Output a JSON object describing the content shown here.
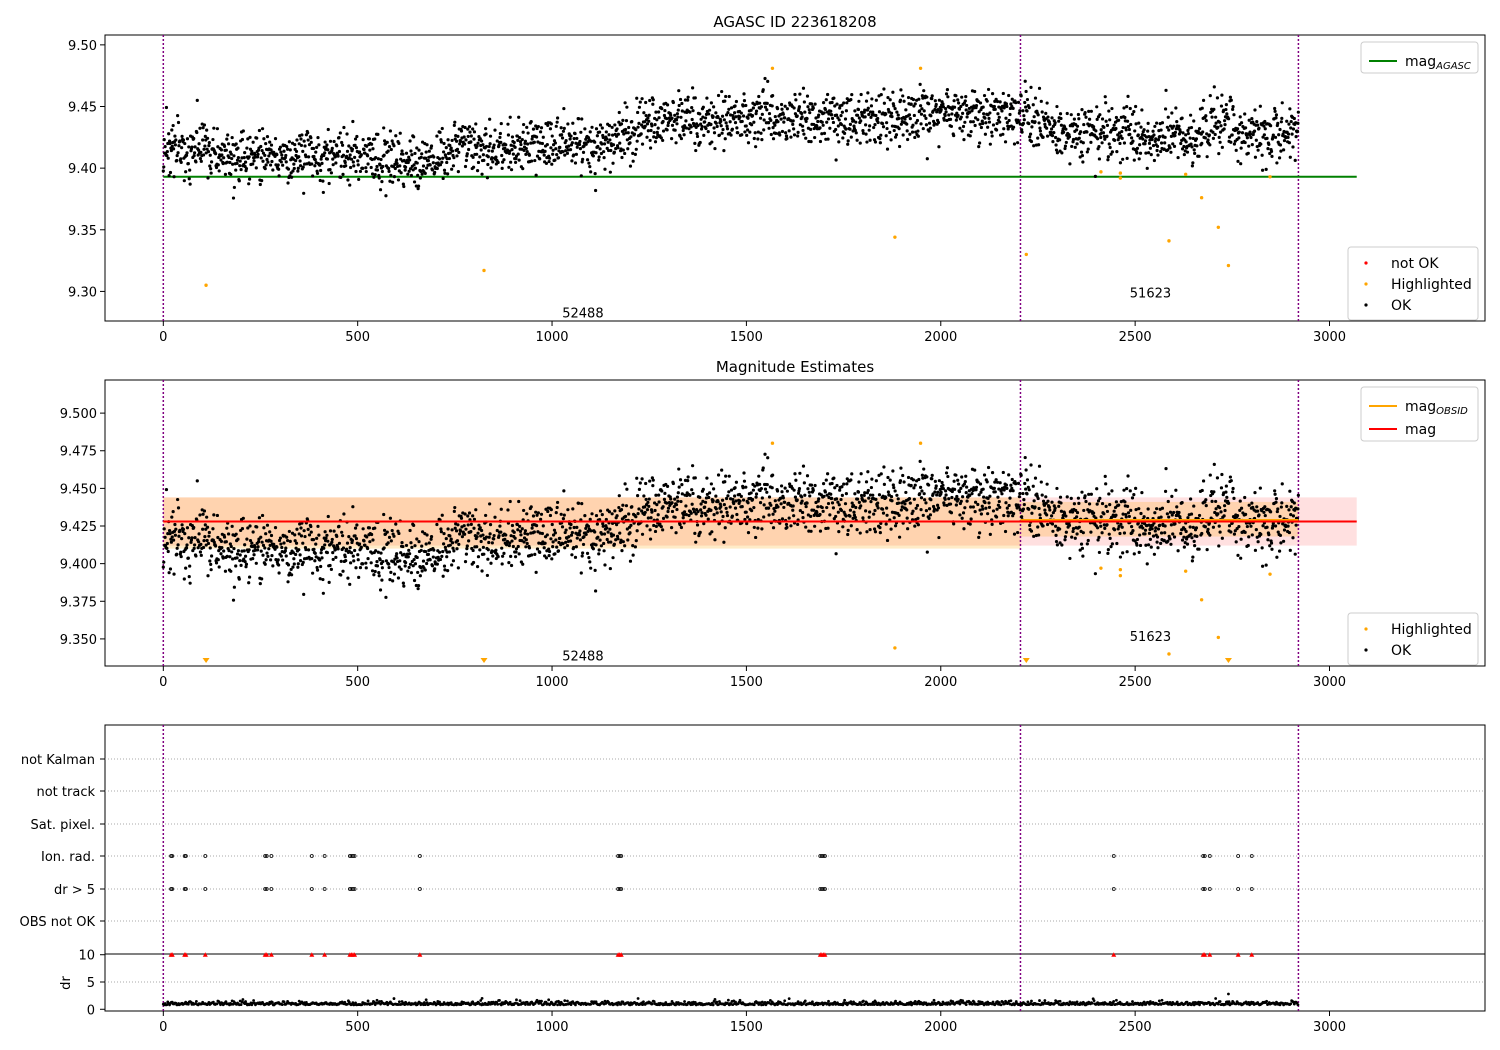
{
  "colors": {
    "agasc_line": "#008000",
    "obsid_line": "#ffa500",
    "mag_line": "#ff0000",
    "highlight": "#ffa500",
    "not_ok": "#ff0000",
    "ok": "#000000",
    "obs_boundary": "#800080",
    "band_obsid": "#ffa500",
    "band_mag": "#ff9999"
  },
  "chart_data": [
    {
      "type": "scatter",
      "title": "AGASC ID 223618208",
      "xlim": [
        -150,
        3400
      ],
      "ylim": [
        9.276,
        9.508
      ],
      "xticks": [
        "0",
        "500",
        "1000",
        "1500",
        "2000",
        "2500",
        "3000"
      ],
      "xtick_values": [
        0,
        500,
        1000,
        1500,
        2000,
        2500,
        3000
      ],
      "yticks": [
        "9.30",
        "9.35",
        "9.40",
        "9.45",
        "9.50"
      ],
      "ytick_values": [
        9.3,
        9.35,
        9.4,
        9.45,
        9.5
      ],
      "obs_boundaries": [
        0,
        2205,
        2920
      ],
      "obs_labels": [
        {
          "text": "52488",
          "x": 1100,
          "y": 9.283
        },
        {
          "text": "51623",
          "x": 2560,
          "y": 9.299
        }
      ],
      "agasc_mag": 9.393,
      "agasc_line_x": [
        0,
        3070
      ],
      "legend_top": [
        {
          "name": "magAGASC",
          "label": "mag",
          "sub": "AGASC"
        }
      ],
      "legend_bottom": [
        {
          "name": "not OK"
        },
        {
          "name": "Highlighted"
        },
        {
          "name": "OK"
        }
      ],
      "ok_trend": {
        "x": [
          0,
          150,
          300,
          500,
          650,
          800,
          1000,
          1150,
          1300,
          1450,
          1600,
          1800,
          2000,
          2200,
          2300,
          2500,
          2650,
          2720,
          2780,
          2920
        ],
        "y": [
          9.42,
          9.41,
          9.412,
          9.408,
          9.405,
          9.418,
          9.418,
          9.423,
          9.44,
          9.438,
          9.442,
          9.44,
          9.445,
          9.442,
          9.43,
          9.428,
          9.425,
          9.44,
          9.425,
          9.432
        ]
      },
      "ok_scatter_sd": 0.011,
      "highlighted": [
        {
          "x": 110,
          "y": 9.305
        },
        {
          "x": 825,
          "y": 9.317
        },
        {
          "x": 1567,
          "y": 9.481
        },
        {
          "x": 1882,
          "y": 9.344
        },
        {
          "x": 1948,
          "y": 9.481
        },
        {
          "x": 2220,
          "y": 9.33
        },
        {
          "x": 2412,
          "y": 9.397
        },
        {
          "x": 2462,
          "y": 9.396
        },
        {
          "x": 2462,
          "y": 9.392
        },
        {
          "x": 2587,
          "y": 9.341
        },
        {
          "x": 2630,
          "y": 9.395
        },
        {
          "x": 2671,
          "y": 9.376
        },
        {
          "x": 2714,
          "y": 9.352
        },
        {
          "x": 2740,
          "y": 9.321
        },
        {
          "x": 2847,
          "y": 9.393
        }
      ]
    },
    {
      "type": "scatter",
      "title": "Magnitude Estimates",
      "xlim": [
        -150,
        3400
      ],
      "ylim": [
        9.332,
        9.522
      ],
      "xticks": [
        "0",
        "500",
        "1000",
        "1500",
        "2000",
        "2500",
        "3000"
      ],
      "xtick_values": [
        0,
        500,
        1000,
        1500,
        2000,
        2500,
        3000
      ],
      "yticks": [
        "9.350",
        "9.375",
        "9.400",
        "9.425",
        "9.450",
        "9.475",
        "9.500"
      ],
      "ytick_values": [
        9.35,
        9.375,
        9.4,
        9.425,
        9.45,
        9.475,
        9.5
      ],
      "obs_boundaries": [
        0,
        2205,
        2920
      ],
      "obs_labels": [
        {
          "text": "52488",
          "x": 1100,
          "y": 9.339
        },
        {
          "text": "51623",
          "x": 2560,
          "y": 9.352
        }
      ],
      "mag": 9.428,
      "mag_band": [
        9.412,
        9.444
      ],
      "mag_line_x": [
        0,
        3070
      ],
      "obsid_bands": [
        {
          "x": [
            0,
            2205
          ],
          "mag": 9.428,
          "band": [
            9.41,
            9.444
          ]
        },
        {
          "x": [
            2205,
            2920
          ],
          "mag": 9.429,
          "band": [
            9.418,
            9.441
          ]
        }
      ],
      "legend_top": [
        {
          "name": "magOBSID",
          "label": "mag",
          "sub": "OBSID"
        },
        {
          "name": "mag",
          "label": "mag",
          "sub": ""
        }
      ],
      "legend_bottom": [
        {
          "name": "Highlighted"
        },
        {
          "name": "OK"
        }
      ],
      "highlighted": [
        {
          "x": 1567,
          "y": 9.48
        },
        {
          "x": 1882,
          "y": 9.344
        },
        {
          "x": 1948,
          "y": 9.48
        },
        {
          "x": 2412,
          "y": 9.397
        },
        {
          "x": 2462,
          "y": 9.396
        },
        {
          "x": 2462,
          "y": 9.392
        },
        {
          "x": 2587,
          "y": 9.34
        },
        {
          "x": 2630,
          "y": 9.395
        },
        {
          "x": 2671,
          "y": 9.376
        },
        {
          "x": 2714,
          "y": 9.351
        },
        {
          "x": 2847,
          "y": 9.393
        }
      ],
      "offscale_low_markers": [
        110,
        825,
        2220,
        2740
      ]
    },
    {
      "type": "scatter",
      "title": "",
      "xlim": [
        -150,
        3400
      ],
      "xticks": [
        "0",
        "500",
        "1000",
        "1500",
        "2000",
        "2500",
        "3000"
      ],
      "xtick_values": [
        0,
        500,
        1000,
        1500,
        2000,
        2500,
        3000
      ],
      "flag_rows": [
        "not Kalman",
        "not track",
        "Sat. pixel.",
        "Ion. rad.",
        "dr > 5",
        "OBS not OK"
      ],
      "flag_points": {
        "Ion. rad.": [
          20,
          23,
          55,
          58,
          108,
          262,
          266,
          278,
          382,
          415,
          480,
          484,
          488,
          492,
          660,
          1170,
          1174,
          1178,
          1690,
          1694,
          1698,
          1702,
          2445,
          2675,
          2679,
          2692,
          2765,
          2800
        ],
        "dr > 5": [
          20,
          23,
          55,
          58,
          108,
          262,
          266,
          278,
          382,
          415,
          480,
          484,
          488,
          492,
          660,
          1170,
          1174,
          1178,
          1690,
          1694,
          1698,
          1702,
          2445,
          2675,
          2679,
          2692,
          2765,
          2800
        ]
      },
      "dr_axis": {
        "ylabel": "dr",
        "ylim": [
          -0.5,
          10.5
        ],
        "yticks": [
          "0",
          "5",
          "10"
        ],
        "ytick_values": [
          0,
          5,
          10
        ],
        "clipped_markers": [
          20,
          23,
          55,
          58,
          108,
          262,
          266,
          278,
          382,
          415,
          480,
          484,
          488,
          492,
          660,
          1170,
          1174,
          1178,
          1690,
          1694,
          1698,
          1702,
          2445,
          2675,
          2679,
          2692,
          2765,
          2800
        ],
        "base_level": 0.8,
        "outliers": [
          {
            "x": 2740,
            "y": 2.8
          },
          {
            "x": 820,
            "y": 2.0
          }
        ]
      },
      "obs_boundaries": [
        0,
        2205,
        2920
      ]
    }
  ]
}
